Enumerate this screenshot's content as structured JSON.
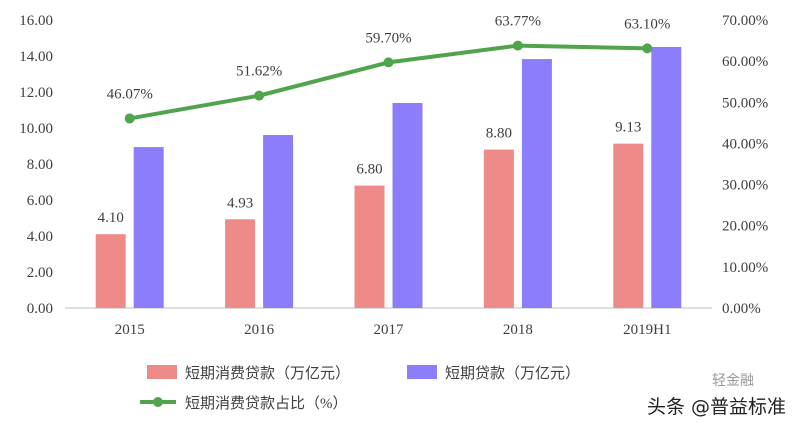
{
  "chart_data": {
    "type": "bar",
    "categories": [
      "2015",
      "2016",
      "2017",
      "2018",
      "2019H1"
    ],
    "series": [
      {
        "name": "短期消费贷款（万亿元）",
        "type": "bar",
        "axis": "left",
        "values": [
          4.1,
          4.93,
          6.8,
          8.8,
          9.13
        ],
        "labels": [
          "4.10",
          "4.93",
          "6.80",
          "8.80",
          "9.13"
        ],
        "color": "#ee8a88"
      },
      {
        "name": "短期贷款（万亿元）",
        "type": "bar",
        "axis": "left",
        "values": [
          8.94,
          9.61,
          11.39,
          13.83,
          14.5
        ],
        "color": "#8c7dfb"
      },
      {
        "name": "短期消费贷款占比（%）",
        "type": "line",
        "axis": "right",
        "values": [
          46.07,
          51.62,
          59.7,
          63.77,
          63.1
        ],
        "labels": [
          "46.07%",
          "51.62%",
          "59.70%",
          "63.77%",
          "63.10%"
        ],
        "color": "#4fa44c"
      }
    ],
    "ylim": [
      0,
      16
    ],
    "yticks": [
      "0.00",
      "2.00",
      "4.00",
      "6.00",
      "8.00",
      "10.00",
      "12.00",
      "14.00",
      "16.00"
    ],
    "y2lim": [
      0,
      70
    ],
    "y2ticks": [
      "0.00%",
      "10.00%",
      "20.00%",
      "30.00%",
      "40.00%",
      "50.00%",
      "60.00%",
      "70.00%"
    ],
    "grid": false,
    "legend": "bottom"
  },
  "watermark": {
    "text": "头条 @普益标准",
    "sub": "轻金融"
  }
}
